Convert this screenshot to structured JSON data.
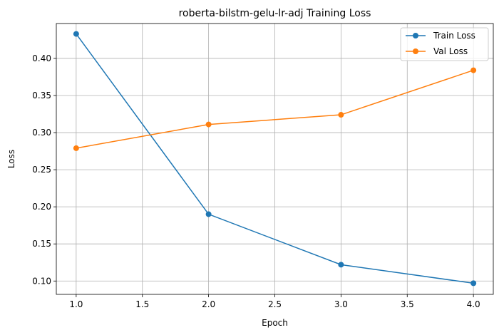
{
  "chart_data": {
    "type": "line",
    "title": "roberta-bilstm-gelu-lr-adj Training Loss",
    "xlabel": "Epoch",
    "ylabel": "Loss",
    "xlim": [
      0.85,
      4.15
    ],
    "ylim": [
      0.082,
      0.447
    ],
    "xticks": [
      "1.0",
      "1.5",
      "2.0",
      "2.5",
      "3.0",
      "3.5",
      "4.0"
    ],
    "yticks": [
      "0.10",
      "0.15",
      "0.20",
      "0.25",
      "0.30",
      "0.35",
      "0.40"
    ],
    "grid": true,
    "legend_position": "top-right",
    "x": [
      1,
      2,
      3,
      4
    ],
    "series": [
      {
        "name": "Train Loss",
        "color": "#1f77b4",
        "values": [
          0.433,
          0.19,
          0.122,
          0.097
        ]
      },
      {
        "name": "Val Loss",
        "color": "#ff7f0e",
        "values": [
          0.279,
          0.311,
          0.324,
          0.384
        ]
      }
    ]
  }
}
